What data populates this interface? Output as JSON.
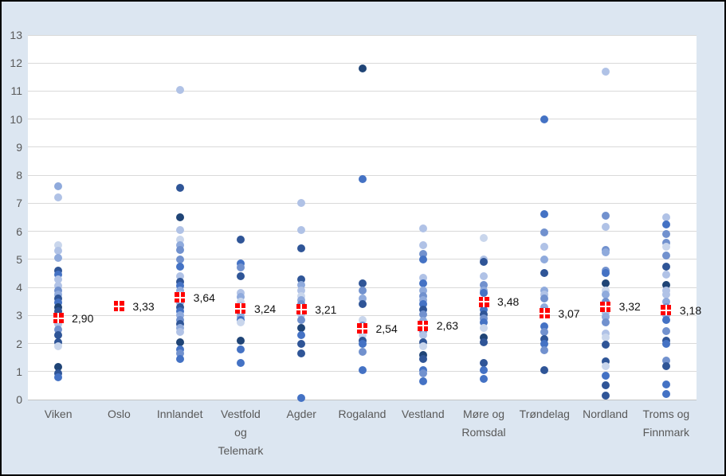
{
  "chart_data": {
    "type": "scatter",
    "title": "",
    "xlabel": "",
    "ylabel": "",
    "ylim": [
      0,
      13
    ],
    "ytick_step": 1,
    "yticks": [
      "0",
      "1",
      "2",
      "3",
      "4",
      "5",
      "6",
      "7",
      "8",
      "9",
      "10",
      "11",
      "12",
      "13"
    ],
    "grid": true,
    "legend_position": "none",
    "decimal_separator": ",",
    "colors": {
      "background": "#dce6f1",
      "plot_background": "#ffffff",
      "gridline": "#d9d9d9",
      "axis_line": "#c3c3c3",
      "axis_text": "#595959",
      "frame_border": "#000000",
      "mean_marker": "#ff0000",
      "mean_label_text": "#111111"
    },
    "dot_palette": [
      "#c9d6ec",
      "#b0c2e6",
      "#8faadc",
      "#7191ce",
      "#4472c4",
      "#2f5597",
      "#1f4476"
    ],
    "series_note": "blue dots = individual observations (shade varies); red square = category mean",
    "categories": [
      {
        "name": "Viken",
        "label_lines": [
          "Viken"
        ],
        "mean": 2.9,
        "mean_label": "2,90",
        "points": [
          [
            7.6,
            2
          ],
          [
            7.2,
            1
          ],
          [
            5.5,
            0
          ],
          [
            5.3,
            1
          ],
          [
            5.05,
            2
          ],
          [
            4.6,
            5
          ],
          [
            4.45,
            4
          ],
          [
            4.3,
            1
          ],
          [
            4.05,
            1
          ],
          [
            3.9,
            3
          ],
          [
            3.75,
            2
          ],
          [
            3.6,
            5
          ],
          [
            3.45,
            4
          ],
          [
            3.3,
            6
          ],
          [
            3.15,
            5
          ],
          [
            2.95,
            4
          ],
          [
            2.7,
            1
          ],
          [
            2.5,
            3
          ],
          [
            2.3,
            5
          ],
          [
            2.05,
            5
          ],
          [
            1.9,
            0
          ],
          [
            1.15,
            6
          ],
          [
            0.95,
            5
          ],
          [
            0.8,
            4
          ]
        ]
      },
      {
        "name": "Oslo",
        "label_lines": [
          "Oslo"
        ],
        "mean": 3.33,
        "mean_label": "3,33",
        "points": []
      },
      {
        "name": "Innlandet",
        "label_lines": [
          "Innlandet"
        ],
        "mean": 3.64,
        "mean_label": "3,64",
        "points": [
          [
            11.05,
            1
          ],
          [
            7.55,
            5
          ],
          [
            6.5,
            6
          ],
          [
            6.05,
            1
          ],
          [
            5.7,
            0
          ],
          [
            5.5,
            2
          ],
          [
            5.35,
            3
          ],
          [
            5.0,
            3
          ],
          [
            4.75,
            4
          ],
          [
            4.4,
            1
          ],
          [
            4.2,
            5
          ],
          [
            4.05,
            4
          ],
          [
            3.9,
            2
          ],
          [
            3.75,
            1
          ],
          [
            3.6,
            3
          ],
          [
            3.45,
            2
          ],
          [
            3.3,
            5
          ],
          [
            3.15,
            4
          ],
          [
            3.0,
            2
          ],
          [
            2.85,
            3
          ],
          [
            2.7,
            5
          ],
          [
            2.55,
            2
          ],
          [
            2.4,
            1
          ],
          [
            2.05,
            6
          ],
          [
            1.8,
            4
          ],
          [
            1.65,
            3
          ],
          [
            1.45,
            4
          ]
        ]
      },
      {
        "name": "Vestfold og Telemark",
        "label_lines": [
          "Vestfold",
          "og",
          "Telemark"
        ],
        "mean": 3.24,
        "mean_label": "3,24",
        "points": [
          [
            5.7,
            5
          ],
          [
            4.85,
            4
          ],
          [
            4.7,
            3
          ],
          [
            4.4,
            5
          ],
          [
            3.8,
            1
          ],
          [
            3.65,
            2
          ],
          [
            3.5,
            0
          ],
          [
            3.35,
            1
          ],
          [
            3.1,
            3
          ],
          [
            2.95,
            2
          ],
          [
            2.85,
            4
          ],
          [
            2.75,
            0
          ],
          [
            2.1,
            6
          ],
          [
            1.8,
            4
          ],
          [
            1.3,
            4
          ]
        ]
      },
      {
        "name": "Agder",
        "label_lines": [
          "Agder"
        ],
        "mean": 3.21,
        "mean_label": "3,21",
        "points": [
          [
            7.0,
            1
          ],
          [
            6.05,
            1
          ],
          [
            5.4,
            5
          ],
          [
            4.3,
            5
          ],
          [
            4.1,
            2
          ],
          [
            3.9,
            1
          ],
          [
            3.7,
            0
          ],
          [
            3.55,
            2
          ],
          [
            3.4,
            3
          ],
          [
            3.2,
            2
          ],
          [
            3.05,
            1
          ],
          [
            2.85,
            3
          ],
          [
            2.55,
            6
          ],
          [
            2.3,
            4
          ],
          [
            2.0,
            5
          ],
          [
            1.65,
            5
          ],
          [
            0.05,
            4
          ]
        ]
      },
      {
        "name": "Rogaland",
        "label_lines": [
          "Rogaland"
        ],
        "mean": 2.54,
        "mean_label": "2,54",
        "points": [
          [
            11.8,
            6
          ],
          [
            7.85,
            4
          ],
          [
            4.15,
            5
          ],
          [
            3.9,
            3
          ],
          [
            3.6,
            2
          ],
          [
            3.4,
            5
          ],
          [
            2.85,
            0
          ],
          [
            2.65,
            3
          ],
          [
            2.5,
            1
          ],
          [
            2.3,
            0
          ],
          [
            2.1,
            5
          ],
          [
            1.98,
            4
          ],
          [
            1.7,
            3
          ],
          [
            1.05,
            4
          ]
        ]
      },
      {
        "name": "Vestland",
        "label_lines": [
          "Vestland"
        ],
        "mean": 2.63,
        "mean_label": "2,63",
        "points": [
          [
            6.1,
            1
          ],
          [
            5.5,
            1
          ],
          [
            5.2,
            3
          ],
          [
            5.0,
            4
          ],
          [
            4.35,
            1
          ],
          [
            4.15,
            4
          ],
          [
            3.9,
            2
          ],
          [
            3.7,
            3
          ],
          [
            3.55,
            2
          ],
          [
            3.4,
            4
          ],
          [
            3.2,
            5
          ],
          [
            3.05,
            3
          ],
          [
            2.8,
            2
          ],
          [
            2.45,
            3
          ],
          [
            2.3,
            1
          ],
          [
            2.05,
            5
          ],
          [
            1.9,
            0
          ],
          [
            1.6,
            6
          ],
          [
            1.45,
            5
          ],
          [
            1.05,
            4
          ],
          [
            0.95,
            3
          ],
          [
            0.65,
            4
          ]
        ]
      },
      {
        "name": "Møre og Romsdal",
        "label_lines": [
          "Møre og",
          "Romsdal"
        ],
        "mean": 3.48,
        "mean_label": "3,48",
        "points": [
          [
            5.75,
            0
          ],
          [
            5.0,
            1
          ],
          [
            4.9,
            5
          ],
          [
            4.4,
            1
          ],
          [
            4.1,
            3
          ],
          [
            3.9,
            2
          ],
          [
            3.8,
            4
          ],
          [
            3.2,
            4
          ],
          [
            3.05,
            5
          ],
          [
            2.9,
            3
          ],
          [
            2.75,
            4
          ],
          [
            2.55,
            0
          ],
          [
            2.2,
            6
          ],
          [
            2.05,
            5
          ],
          [
            1.3,
            5
          ],
          [
            1.05,
            4
          ],
          [
            0.75,
            4
          ]
        ]
      },
      {
        "name": "Trøndelag",
        "label_lines": [
          "Trøndelag"
        ],
        "mean": 3.07,
        "mean_label": "3,07",
        "points": [
          [
            10.0,
            4
          ],
          [
            6.6,
            4
          ],
          [
            5.95,
            3
          ],
          [
            5.45,
            1
          ],
          [
            5.0,
            2
          ],
          [
            4.5,
            5
          ],
          [
            3.9,
            2
          ],
          [
            3.75,
            1
          ],
          [
            3.6,
            3
          ],
          [
            3.3,
            2
          ],
          [
            3.15,
            3
          ],
          [
            2.6,
            4
          ],
          [
            2.4,
            3
          ],
          [
            2.15,
            5
          ],
          [
            2.0,
            4
          ],
          [
            1.75,
            3
          ],
          [
            1.05,
            5
          ]
        ]
      },
      {
        "name": "Nordland",
        "label_lines": [
          "Nordland"
        ],
        "mean": 3.32,
        "mean_label": "3,32",
        "points": [
          [
            11.7,
            1
          ],
          [
            6.55,
            3
          ],
          [
            6.15,
            1
          ],
          [
            5.35,
            3
          ],
          [
            5.25,
            2
          ],
          [
            4.6,
            3
          ],
          [
            4.5,
            4
          ],
          [
            4.15,
            6
          ],
          [
            3.9,
            0
          ],
          [
            3.75,
            2
          ],
          [
            3.5,
            3
          ],
          [
            3.1,
            1
          ],
          [
            2.95,
            2
          ],
          [
            2.75,
            3
          ],
          [
            2.35,
            1
          ],
          [
            2.2,
            0
          ],
          [
            1.95,
            5
          ],
          [
            1.35,
            5
          ],
          [
            1.2,
            0
          ],
          [
            0.85,
            4
          ],
          [
            0.5,
            5
          ],
          [
            0.15,
            5
          ]
        ]
      },
      {
        "name": "Troms og Finnmark",
        "label_lines": [
          "Troms og",
          "Finnmark"
        ],
        "mean": 3.18,
        "mean_label": "3,18",
        "points": [
          [
            6.5,
            1
          ],
          [
            6.25,
            4
          ],
          [
            5.9,
            3
          ],
          [
            5.6,
            3
          ],
          [
            5.45,
            0
          ],
          [
            5.15,
            3
          ],
          [
            4.75,
            5
          ],
          [
            4.45,
            1
          ],
          [
            4.1,
            6
          ],
          [
            3.9,
            1
          ],
          [
            3.75,
            1
          ],
          [
            3.5,
            2
          ],
          [
            3.3,
            3
          ],
          [
            3.0,
            2
          ],
          [
            2.85,
            4
          ],
          [
            2.45,
            3
          ],
          [
            2.1,
            5
          ],
          [
            2.0,
            4
          ],
          [
            1.4,
            3
          ],
          [
            1.2,
            5
          ],
          [
            0.55,
            4
          ],
          [
            0.2,
            4
          ]
        ]
      }
    ]
  }
}
